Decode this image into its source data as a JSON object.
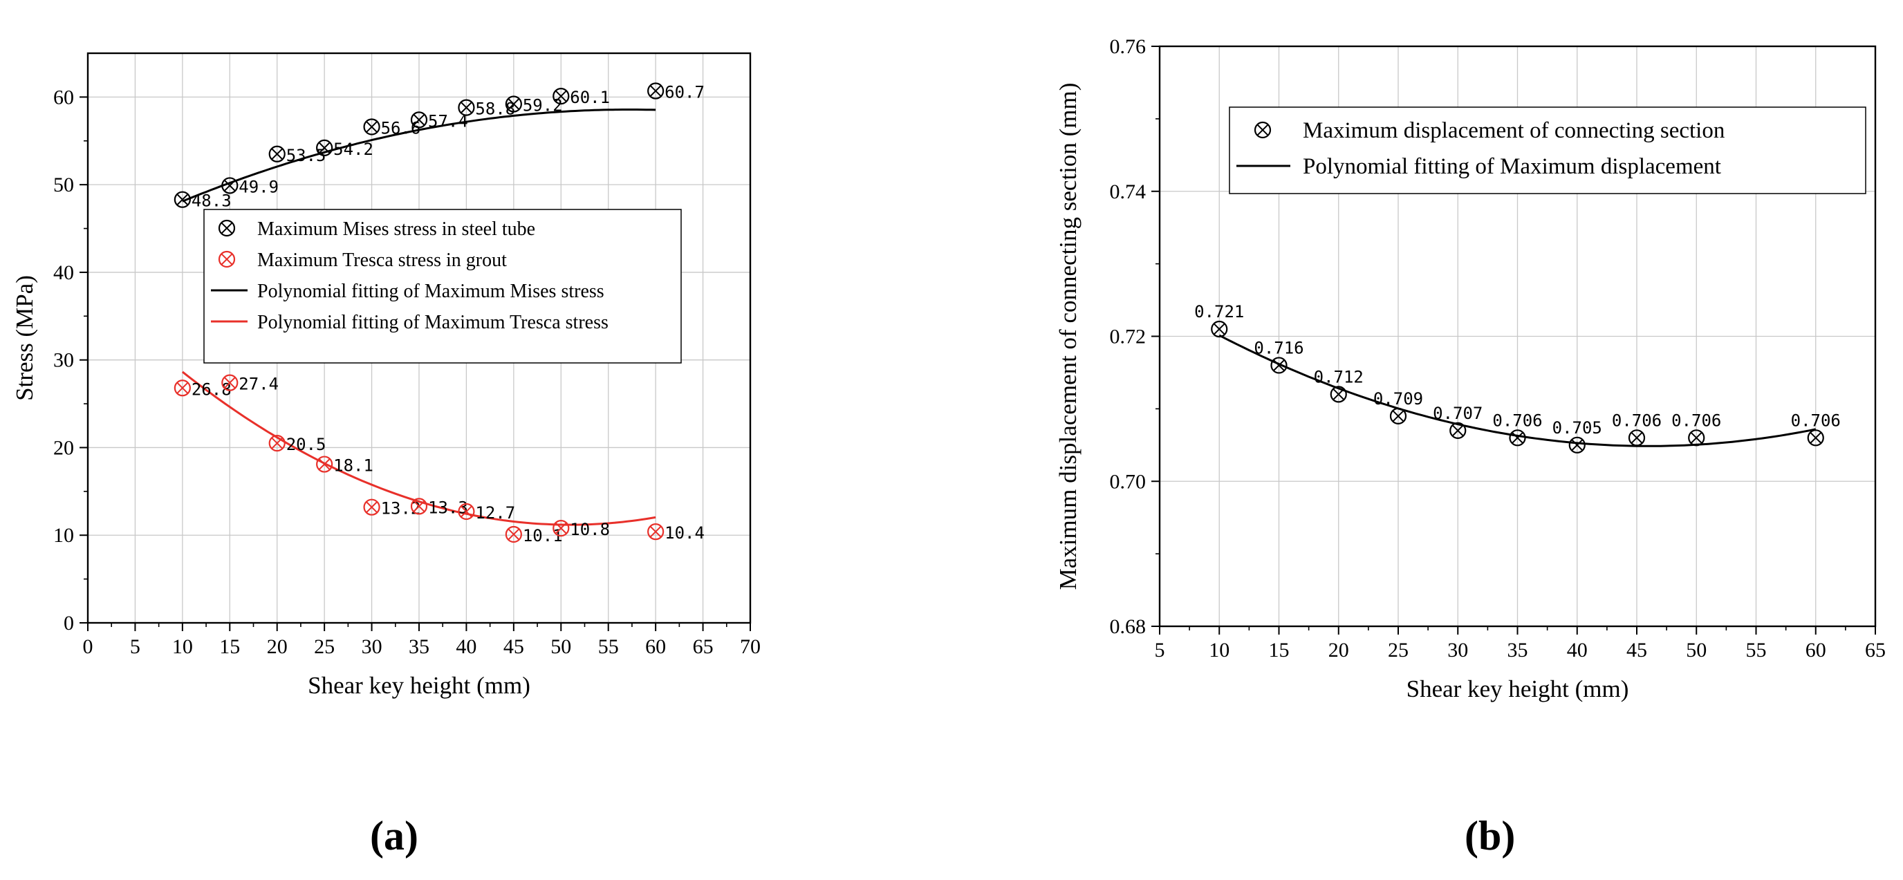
{
  "captions": {
    "a": "(a)",
    "b": "(b)"
  },
  "chart_data": [
    {
      "type": "scatter",
      "panel": "a",
      "xlabel": "Shear key height (mm)",
      "ylabel": "Stress (MPa)",
      "xlim": [
        0,
        70
      ],
      "ylim": [
        0,
        65
      ],
      "xticks": [
        0,
        5,
        10,
        15,
        20,
        25,
        30,
        35,
        40,
        45,
        50,
        55,
        60,
        65,
        70
      ],
      "yticks": [
        0,
        10,
        20,
        30,
        40,
        50,
        60
      ],
      "grid": true,
      "legend_position": "center",
      "series": [
        {
          "name": "Maximum Mises stress in steel tube",
          "color": "#000000",
          "marker": "circle-x",
          "x": [
            10,
            15,
            20,
            25,
            30,
            35,
            40,
            45,
            50,
            60
          ],
          "y": [
            48.3,
            49.9,
            53.5,
            54.2,
            56.6,
            57.4,
            58.8,
            59.2,
            60.1,
            60.7
          ],
          "labels": [
            "48.3",
            "49.9",
            "53.5",
            "54.2",
            "56.6",
            "57.4",
            "58.8",
            "59.2",
            "60.1",
            "60.7"
          ]
        },
        {
          "name": "Maximum Tresca stress in grout",
          "color": "#e8302a",
          "marker": "circle-x",
          "x": [
            10,
            15,
            20,
            25,
            30,
            35,
            40,
            45,
            50,
            60
          ],
          "y": [
            26.8,
            27.4,
            20.5,
            18.1,
            13.2,
            13.3,
            12.7,
            10.1,
            10.8,
            10.4
          ],
          "labels": [
            "26.8",
            "27.4",
            "20.5",
            "18.1",
            "13.2",
            "13.3",
            "12.7",
            "10.1",
            "10.8",
            "10.4"
          ]
        },
        {
          "name": "Polynomial fitting of Maximum Mises stress",
          "color": "#000000",
          "type": "line",
          "coef": [
            43.2,
            0.537,
            -0.00469
          ],
          "x_range": [
            10,
            60
          ]
        },
        {
          "name": "Polynomial fitting of Maximum Tresca stress",
          "color": "#e8302a",
          "type": "line",
          "coef": [
            38.2,
            -1.06,
            0.0104
          ],
          "x_range": [
            10,
            60
          ]
        }
      ]
    },
    {
      "type": "scatter",
      "panel": "b",
      "xlabel": "Shear key height (mm)",
      "ylabel": "Maximum displacement of connecting section (mm)",
      "xlim": [
        5,
        65
      ],
      "ylim": [
        0.68,
        0.76
      ],
      "xticks": [
        5,
        10,
        15,
        20,
        25,
        30,
        35,
        40,
        45,
        50,
        55,
        60,
        65
      ],
      "yticks": [
        "0.68",
        "0.70",
        "0.72",
        "0.74",
        "0.76"
      ],
      "grid": true,
      "legend_position": "top-right",
      "series": [
        {
          "name": "Maximum displacement of connecting section",
          "color": "#000000",
          "marker": "circle-x",
          "x": [
            10,
            15,
            20,
            25,
            30,
            35,
            40,
            45,
            50,
            60
          ],
          "y": [
            0.721,
            0.716,
            0.712,
            0.709,
            0.707,
            0.706,
            0.705,
            0.706,
            0.706,
            0.706
          ],
          "labels": [
            "0.721",
            "0.716",
            "0.712",
            "0.709",
            "0.707",
            "0.706",
            "0.705",
            "0.706",
            "0.706",
            "0.706"
          ]
        },
        {
          "name": "Polynomial fitting of Maximum displacement",
          "color": "#000000",
          "type": "line",
          "coef": [
            0.7298,
            -0.001085,
            1.18e-05
          ],
          "x_range": [
            10,
            60
          ]
        }
      ]
    }
  ]
}
